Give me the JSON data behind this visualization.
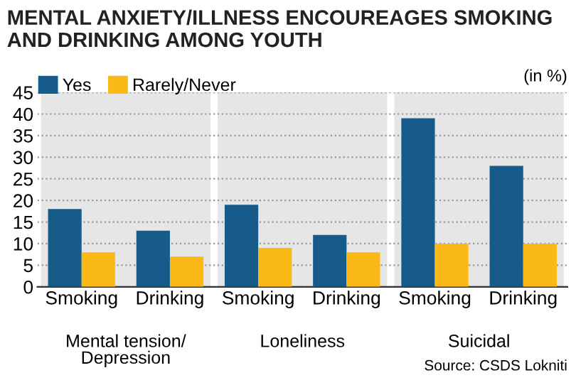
{
  "chart_data": {
    "type": "bar",
    "title": "MENTAL ANXIETY/ILLNESS ENCOUREAGES SMOKING\nAND DRINKING AMONG YOUTH",
    "categories": [
      "Smoking",
      "Drinking",
      "Smoking",
      "Drinking",
      "Smoking",
      "Drinking"
    ],
    "series": [
      {
        "name": "Yes",
        "color": "#175b8a",
        "values": [
          18,
          13,
          19,
          12,
          39,
          28
        ]
      },
      {
        "name": "Rarely/Never",
        "color": "#fbb917",
        "values": [
          8,
          7,
          9,
          8,
          10,
          10
        ]
      }
    ],
    "ylim": [
      0,
      45
    ],
    "yticks": [
      0,
      5,
      10,
      15,
      20,
      25,
      30,
      35,
      40,
      45
    ],
    "grid": "y",
    "legend": "top left",
    "annotations": [
      "Mental tension/\nDepression",
      "Loneliness",
      "Suicidal",
      "(in %)",
      "Source: CSDS Lokniti"
    ]
  }
}
